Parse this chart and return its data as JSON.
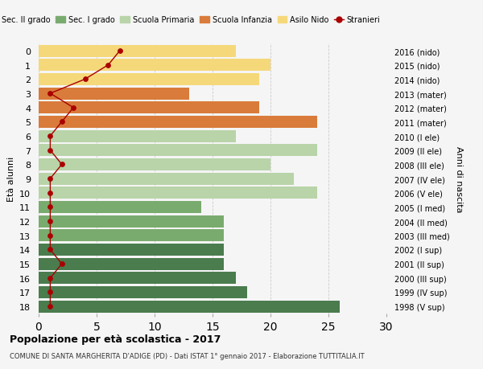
{
  "ages": [
    18,
    17,
    16,
    15,
    14,
    13,
    12,
    11,
    10,
    9,
    8,
    7,
    6,
    5,
    4,
    3,
    2,
    1,
    0
  ],
  "bar_values": [
    26,
    18,
    17,
    16,
    16,
    16,
    16,
    14,
    24,
    22,
    20,
    24,
    17,
    24,
    19,
    13,
    19,
    20,
    17
  ],
  "bar_colors": [
    "#4a7c4e",
    "#4a7c4e",
    "#4a7c4e",
    "#4a7c4e",
    "#4a7c4e",
    "#7aab6e",
    "#7aab6e",
    "#7aab6e",
    "#b8d4a8",
    "#b8d4a8",
    "#b8d4a8",
    "#b8d4a8",
    "#b8d4a8",
    "#d97b3a",
    "#d97b3a",
    "#d97b3a",
    "#f5d87a",
    "#f5d87a",
    "#f5d87a"
  ],
  "stranieri_values": [
    1,
    1,
    1,
    2,
    1,
    1,
    1,
    1,
    1,
    1,
    2,
    1,
    1,
    2,
    3,
    1,
    4,
    6,
    7
  ],
  "right_labels_by_age": {
    "18": "1998 (V sup)",
    "17": "1999 (IV sup)",
    "16": "2000 (III sup)",
    "15": "2001 (II sup)",
    "14": "2002 (I sup)",
    "13": "2003 (III med)",
    "12": "2004 (II med)",
    "11": "2005 (I med)",
    "10": "2006 (V ele)",
    "9": "2007 (IV ele)",
    "8": "2008 (III ele)",
    "7": "2009 (II ele)",
    "6": "2010 (I ele)",
    "5": "2011 (mater)",
    "4": "2012 (mater)",
    "3": "2013 (mater)",
    "2": "2014 (nido)",
    "1": "2015 (nido)",
    "0": "2016 (nido)"
  },
  "legend_labels": [
    "Sec. II grado",
    "Sec. I grado",
    "Scuola Primaria",
    "Scuola Infanzia",
    "Asilo Nido",
    "Stranieri"
  ],
  "legend_colors": [
    "#4a7c4e",
    "#7aab6e",
    "#b8d4a8",
    "#d97b3a",
    "#f5d87a",
    "#aa0000"
  ],
  "xlabel_left": "Età alunni",
  "xlabel_right": "Anni di nascita",
  "xlim": [
    0,
    30
  ],
  "title": "Popolazione per età scolastica - 2017",
  "subtitle": "COMUNE DI SANTA MARGHERITA D'ADIGE (PD) - Dati ISTAT 1° gennaio 2017 - Elaborazione TUTTITALIA.IT",
  "bg_color": "#f5f5f5"
}
